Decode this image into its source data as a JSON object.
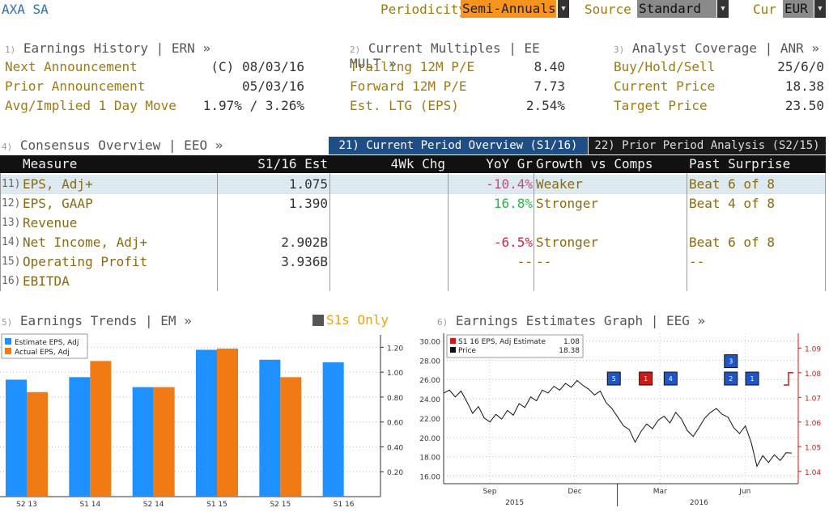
{
  "header": {
    "company": "AXA SA",
    "periodicity_label": "Periodicity",
    "periodicity_value": "Semi-Annuals",
    "source_label": "Source",
    "source_value": "Standard",
    "cur_label": "Cur",
    "cur_value": "EUR"
  },
  "earnings_history": {
    "num": "1)",
    "title": "Earnings History | ERN »",
    "rows": [
      {
        "label": "Next Announcement",
        "value": "(C)  08/03/16"
      },
      {
        "label": "Prior Announcement",
        "value": "05/03/16"
      },
      {
        "label": "Avg/Implied 1 Day Move",
        "value": "1.97% / 3.26%"
      }
    ]
  },
  "current_multiples": {
    "num": "2)",
    "title": "Current Multiples | EE MULT »",
    "rows": [
      {
        "label": "Trailing 12M P/E",
        "value": "8.40"
      },
      {
        "label": "Forward 12M P/E",
        "value": "7.73"
      },
      {
        "label": "Est. LTG (EPS)",
        "value": "2.54%"
      }
    ]
  },
  "analyst_coverage": {
    "num": "3)",
    "title": "Analyst Coverage | ANR »",
    "rows": [
      {
        "label": "Buy/Hold/Sell",
        "value": "25/6/0"
      },
      {
        "label": "Current Price",
        "value": "18.38"
      },
      {
        "label": "Target Price",
        "value": "23.50"
      }
    ]
  },
  "consensus": {
    "num": "4)",
    "title": "Consensus Overview | EEO »",
    "tab_current": "21) Current Period Overview (S1/16)",
    "tab_prior": "22) Prior Period Analysis (S2/15)",
    "columns": [
      "Measure",
      "S1/16 Est",
      "4Wk Chg",
      "YoY Gr",
      "Growth vs Comps",
      "Past Surprise"
    ],
    "rows": [
      {
        "num": "11)",
        "measure": "EPS, Adj+",
        "est": "1.075",
        "chg": "",
        "yoy": "-10.4%",
        "growth": "Weaker",
        "surprise": "Beat 6 of 8"
      },
      {
        "num": "12)",
        "measure": "EPS, GAAP",
        "est": "1.390",
        "chg": "",
        "yoy": "16.8%",
        "growth": "Stronger",
        "surprise": "Beat 4 of 8"
      },
      {
        "num": "13)",
        "measure": "Revenue",
        "est": "",
        "chg": "",
        "yoy": "",
        "growth": "",
        "surprise": ""
      },
      {
        "num": "14)",
        "measure": "Net Income, Adj+",
        "est": "2.902B",
        "chg": "",
        "yoy": "-6.5%",
        "growth": "Stronger",
        "surprise": "Beat 6 of 8"
      },
      {
        "num": "15)",
        "measure": "Operating Profit",
        "est": "3.936B",
        "chg": "",
        "yoy": "--",
        "growth": "--",
        "surprise": "--"
      },
      {
        "num": "16)",
        "measure": "EBITDA",
        "est": "",
        "chg": "",
        "yoy": "",
        "growth": "",
        "surprise": ""
      }
    ]
  },
  "earnings_trends": {
    "num": "5)",
    "title": "Earnings Trends | EM »",
    "toggle_label": "S1s Only"
  },
  "earnings_graph": {
    "num": "6)",
    "title": "Earnings Estimates Graph | EEG »"
  },
  "chart_data": [
    {
      "type": "bar",
      "categories": [
        "S2 13",
        "S1 14",
        "S2 14",
        "S1 15",
        "S2 15",
        "S1 16"
      ],
      "series": [
        {
          "name": "Estimate EPS, Adj",
          "color": "#1e90ff",
          "values": [
            0.94,
            0.96,
            0.88,
            1.18,
            1.1,
            1.08
          ]
        },
        {
          "name": "Actual EPS, Adj",
          "color": "#f07a14",
          "values": [
            0.84,
            1.09,
            0.88,
            1.19,
            0.96,
            null
          ]
        }
      ],
      "ylim": [
        0,
        1.3
      ],
      "yticks": [
        "0.20",
        "0.40",
        "0.60",
        "0.80",
        "1.00",
        "1.20"
      ],
      "ytick_values": [
        0.2,
        0.4,
        0.6,
        0.8,
        1.0,
        1.2
      ],
      "grid": true,
      "legend": "top-left"
    },
    {
      "type": "line",
      "legend": [
        {
          "name": "S1 16 EPS, Adj Estimate",
          "value": "1.08",
          "color": "#d01818"
        },
        {
          "name": "Price",
          "value": "18.38",
          "color": "#111111"
        }
      ],
      "left_ticks": [
        "16.00",
        "18.00",
        "20.00",
        "22.00",
        "24.00",
        "26.00",
        "28.00",
        "30.00"
      ],
      "left_tick_values": [
        16,
        18,
        20,
        22,
        24,
        26,
        28,
        30
      ],
      "right_ticks": [
        "1.04",
        "1.05",
        "1.06",
        "1.07",
        "1.08",
        "1.09"
      ],
      "right_tick_values": [
        1.04,
        1.05,
        1.06,
        1.07,
        1.08,
        1.09
      ],
      "left_ylim": [
        15.2,
        30.8
      ],
      "right_ylim": [
        1.035,
        1.096
      ],
      "x_months": [
        "Sep",
        "Dec",
        "Mar",
        "Jun"
      ],
      "x_years": [
        "2015",
        "2016"
      ],
      "price": [
        24.6,
        24.9,
        24.2,
        24.8,
        23.7,
        22.5,
        23.2,
        22.0,
        21.6,
        22.4,
        21.9,
        22.8,
        22.3,
        23.5,
        23.1,
        24.2,
        23.8,
        24.9,
        24.6,
        25.3,
        24.9,
        25.6,
        25.2,
        25.9,
        25.4,
        25.0,
        24.4,
        24.8,
        23.6,
        23.0,
        22.1,
        21.2,
        20.8,
        19.5,
        20.6,
        21.4,
        20.9,
        21.8,
        22.2,
        21.5,
        22.6,
        21.9,
        20.7,
        20.1,
        21.0,
        22.0,
        22.6,
        23.0,
        22.4,
        22.1,
        21.0,
        20.4,
        21.2,
        19.5,
        17.0,
        18.1,
        17.4,
        18.2,
        17.6,
        18.4,
        18.38
      ],
      "estimate_markers": [
        {
          "label": "5",
          "color": "#1e56c8",
          "y": 26.1,
          "xf": 0.48
        },
        {
          "label": "1",
          "color": "#d01818",
          "y": 26.1,
          "xf": 0.57
        },
        {
          "label": "4",
          "color": "#1e56c8",
          "y": 26.1,
          "xf": 0.64
        },
        {
          "label": "3",
          "color": "#1e56c8",
          "y": 27.9,
          "xf": 0.81
        },
        {
          "label": "2",
          "color": "#1e56c8",
          "y": 26.1,
          "xf": 0.81
        },
        {
          "label": "1",
          "color": "#1e56c8",
          "y": 26.1,
          "xf": 0.87
        }
      ],
      "estimate_line": [
        1.075,
        1.075,
        1.08
      ]
    }
  ]
}
